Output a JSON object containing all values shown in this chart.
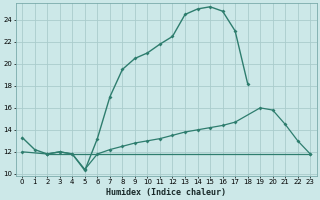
{
  "xlabel": "Humidex (Indice chaleur)",
  "bg_color": "#cce8e8",
  "grid_color": "#aacccc",
  "line_color": "#2e7d6e",
  "xlim": [
    -0.5,
    23.5
  ],
  "ylim": [
    9.8,
    25.5
  ],
  "xticks": [
    0,
    1,
    2,
    3,
    4,
    5,
    6,
    7,
    8,
    9,
    10,
    11,
    12,
    13,
    14,
    15,
    16,
    17,
    18,
    19,
    20,
    21,
    22,
    23
  ],
  "yticks": [
    10,
    12,
    14,
    16,
    18,
    20,
    22,
    24
  ],
  "line1_x": [
    0,
    1,
    2,
    3,
    4,
    5,
    6,
    7,
    8,
    9,
    10,
    11,
    12,
    13,
    14,
    15,
    16,
    17,
    18
  ],
  "line1_y": [
    13.3,
    12.2,
    11.8,
    12.0,
    11.8,
    10.3,
    13.2,
    17.0,
    19.5,
    20.5,
    21.0,
    21.8,
    22.5,
    24.5,
    25.0,
    25.2,
    24.8,
    23.0,
    18.2
  ],
  "line2_x": [
    0,
    2,
    3,
    4,
    5,
    6,
    7,
    8,
    9,
    10,
    11,
    12,
    13,
    14,
    15,
    16,
    17,
    19,
    20,
    21,
    22,
    23
  ],
  "line2_y": [
    12.0,
    11.8,
    12.0,
    11.8,
    10.4,
    11.8,
    12.2,
    12.5,
    12.8,
    13.0,
    13.2,
    13.5,
    13.8,
    14.0,
    14.2,
    14.4,
    14.7,
    16.0,
    15.8,
    14.5,
    13.0,
    11.8
  ],
  "line3_x": [
    2,
    23
  ],
  "line3_y": [
    11.8,
    11.8
  ]
}
